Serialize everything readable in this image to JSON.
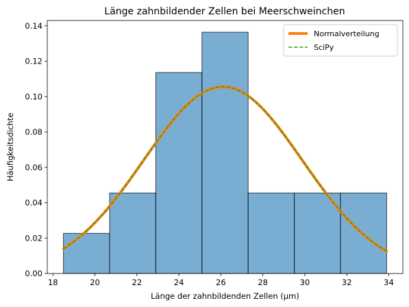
{
  "chart_data": {
    "type": "bar",
    "title": "Länge zahnbildender Zellen bei Meerschweinchen",
    "xlabel": "Länge der zahnbildenden Zellen (µm)",
    "ylabel": "Häufigkeitsdichte",
    "xlim": [
      17.73,
      34.67
    ],
    "ylim": [
      0,
      0.143
    ],
    "xticks": [
      18,
      20,
      22,
      24,
      26,
      28,
      30,
      32,
      34
    ],
    "yticks": [
      0.0,
      0.02,
      0.04,
      0.06,
      0.08,
      0.1,
      0.12,
      0.14
    ],
    "xtick_labels": [
      "18",
      "20",
      "22",
      "24",
      "26",
      "28",
      "30",
      "32",
      "34"
    ],
    "ytick_labels": [
      "0.00",
      "0.02",
      "0.04",
      "0.06",
      "0.08",
      "0.10",
      "0.12",
      "0.14"
    ],
    "grid": false,
    "legend_position": "top-right",
    "histogram": {
      "bin_edges": [
        18.5,
        20.7,
        22.9,
        25.1,
        27.3,
        29.5,
        31.7,
        33.9
      ],
      "densities": [
        0.0227,
        0.0455,
        0.1136,
        0.1364,
        0.0455,
        0.0455,
        0.0455
      ],
      "color": "#1f77b4",
      "edge_color": "#000000",
      "opacity": 0.6
    },
    "series": [
      {
        "name": "Normalverteilung",
        "style": "solid",
        "color": "#ff7f0e",
        "mean": 26.1,
        "sd": 3.78
      },
      {
        "name": "SciPy",
        "style": "dashed",
        "color": "#2ca02c",
        "mean": 26.1,
        "sd": 3.78
      }
    ],
    "curve_x_range": [
      18.5,
      33.9
    ]
  }
}
